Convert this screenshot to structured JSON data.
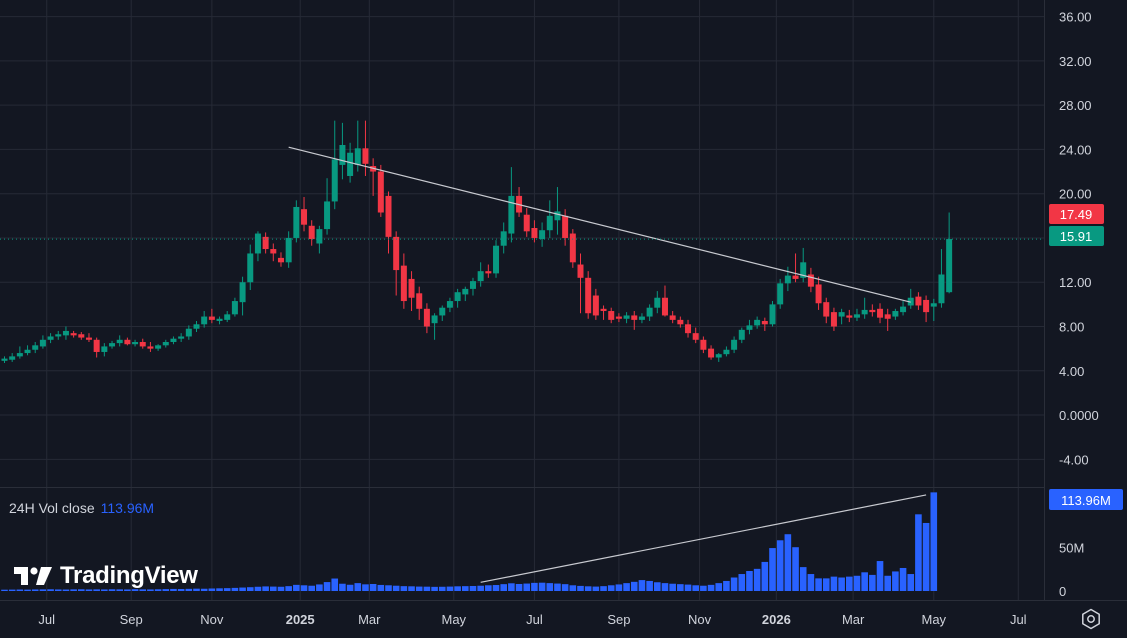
{
  "colors": {
    "up": "#089981",
    "down": "#f23645",
    "volume": "#2962ff",
    "grid": "#262a36",
    "text": "#d1d4dc",
    "bg": "#131722",
    "trend": "#c8cad0"
  },
  "price_axis": {
    "ticks": [
      "36.00",
      "32.00",
      "28.00",
      "24.00",
      "20.00",
      "16.00",
      "12.00",
      "8.00",
      "4.00",
      "0.0000",
      "-4.00"
    ]
  },
  "volume_axis": {
    "ticks": [
      "100M",
      "50M",
      "0"
    ]
  },
  "time_axis": {
    "ticks": [
      "Jul",
      "Sep",
      "Nov",
      "2025",
      "Mar",
      "May",
      "Jul",
      "Sep",
      "Nov",
      "2026",
      "Mar",
      "May",
      "Jul"
    ]
  },
  "price_labels": {
    "current": "17.49",
    "previous": "15.91"
  },
  "volume_legend": {
    "label": "24H Vol close",
    "value": "113.96M",
    "badge": "113.96M"
  },
  "branding": {
    "logo_text": "TradingView"
  },
  "icons": {
    "settings": "settings-icon",
    "logo": "tradingview-logo-icon"
  },
  "chart_data": {
    "type": "candlestick",
    "interval": "weekly",
    "price_range": [
      -6.5,
      37.5
    ],
    "volume_range": [
      0,
      119
    ],
    "grid": true,
    "candles": [
      {
        "o": 4.9,
        "h": 5.3,
        "l": 4.7,
        "c": 5.1
      },
      {
        "o": 5.0,
        "h": 5.6,
        "l": 4.8,
        "c": 5.3
      },
      {
        "o": 5.3,
        "h": 6.2,
        "l": 5.1,
        "c": 5.6
      },
      {
        "o": 5.6,
        "h": 6.3,
        "l": 5.4,
        "c": 5.9
      },
      {
        "o": 5.9,
        "h": 6.6,
        "l": 5.6,
        "c": 6.3
      },
      {
        "o": 6.2,
        "h": 7.2,
        "l": 6.0,
        "c": 6.8
      },
      {
        "o": 6.8,
        "h": 7.4,
        "l": 6.5,
        "c": 7.1
      },
      {
        "o": 7.1,
        "h": 7.6,
        "l": 6.8,
        "c": 7.3
      },
      {
        "o": 7.2,
        "h": 8.0,
        "l": 6.8,
        "c": 7.6
      },
      {
        "o": 7.4,
        "h": 7.6,
        "l": 7.0,
        "c": 7.2
      },
      {
        "o": 7.3,
        "h": 7.5,
        "l": 6.8,
        "c": 7.0
      },
      {
        "o": 7.0,
        "h": 7.4,
        "l": 6.6,
        "c": 6.8
      },
      {
        "o": 6.8,
        "h": 7.0,
        "l": 5.2,
        "c": 5.7
      },
      {
        "o": 5.7,
        "h": 6.5,
        "l": 5.3,
        "c": 6.2
      },
      {
        "o": 6.2,
        "h": 6.7,
        "l": 6.0,
        "c": 6.5
      },
      {
        "o": 6.5,
        "h": 7.2,
        "l": 6.2,
        "c": 6.8
      },
      {
        "o": 6.8,
        "h": 7.0,
        "l": 6.3,
        "c": 6.4
      },
      {
        "o": 6.4,
        "h": 6.8,
        "l": 6.2,
        "c": 6.6
      },
      {
        "o": 6.6,
        "h": 6.9,
        "l": 6.0,
        "c": 6.2
      },
      {
        "o": 6.2,
        "h": 6.6,
        "l": 5.7,
        "c": 6.0
      },
      {
        "o": 6.0,
        "h": 6.4,
        "l": 5.8,
        "c": 6.3
      },
      {
        "o": 6.3,
        "h": 6.8,
        "l": 6.1,
        "c": 6.6
      },
      {
        "o": 6.6,
        "h": 7.1,
        "l": 6.4,
        "c": 6.9
      },
      {
        "o": 6.9,
        "h": 7.4,
        "l": 6.6,
        "c": 7.1
      },
      {
        "o": 7.1,
        "h": 8.1,
        "l": 6.8,
        "c": 7.8
      },
      {
        "o": 7.8,
        "h": 8.5,
        "l": 7.5,
        "c": 8.2
      },
      {
        "o": 8.2,
        "h": 9.4,
        "l": 7.9,
        "c": 8.9
      },
      {
        "o": 8.9,
        "h": 9.6,
        "l": 8.3,
        "c": 8.6
      },
      {
        "o": 8.5,
        "h": 8.9,
        "l": 8.2,
        "c": 8.7
      },
      {
        "o": 8.6,
        "h": 9.4,
        "l": 8.4,
        "c": 9.1
      },
      {
        "o": 9.1,
        "h": 10.6,
        "l": 8.9,
        "c": 10.3
      },
      {
        "o": 10.2,
        "h": 12.5,
        "l": 9.0,
        "c": 12.0
      },
      {
        "o": 12.0,
        "h": 15.4,
        "l": 11.3,
        "c": 14.6
      },
      {
        "o": 14.6,
        "h": 16.6,
        "l": 13.9,
        "c": 16.4
      },
      {
        "o": 16.1,
        "h": 16.5,
        "l": 14.6,
        "c": 15.0
      },
      {
        "o": 15.0,
        "h": 15.5,
        "l": 13.9,
        "c": 14.6
      },
      {
        "o": 14.2,
        "h": 14.7,
        "l": 13.4,
        "c": 13.8
      },
      {
        "o": 13.8,
        "h": 16.6,
        "l": 13.3,
        "c": 16.0
      },
      {
        "o": 16.0,
        "h": 19.4,
        "l": 15.6,
        "c": 18.8
      },
      {
        "o": 18.6,
        "h": 19.7,
        "l": 16.6,
        "c": 17.2
      },
      {
        "o": 17.1,
        "h": 17.6,
        "l": 15.3,
        "c": 15.9
      },
      {
        "o": 15.5,
        "h": 17.1,
        "l": 14.6,
        "c": 16.8
      },
      {
        "o": 16.8,
        "h": 21.4,
        "l": 16.3,
        "c": 19.3
      },
      {
        "o": 19.3,
        "h": 26.6,
        "l": 18.6,
        "c": 23.1
      },
      {
        "o": 22.6,
        "h": 26.4,
        "l": 21.3,
        "c": 24.4
      },
      {
        "o": 21.6,
        "h": 24.6,
        "l": 21.0,
        "c": 23.7
      },
      {
        "o": 22.6,
        "h": 26.6,
        "l": 22.0,
        "c": 24.1
      },
      {
        "o": 24.1,
        "h": 26.6,
        "l": 21.6,
        "c": 22.7
      },
      {
        "o": 22.5,
        "h": 23.2,
        "l": 19.8,
        "c": 22.0
      },
      {
        "o": 22.0,
        "h": 22.6,
        "l": 17.9,
        "c": 18.3
      },
      {
        "o": 19.8,
        "h": 20.2,
        "l": 14.6,
        "c": 16.1
      },
      {
        "o": 16.1,
        "h": 16.6,
        "l": 10.8,
        "c": 13.1
      },
      {
        "o": 13.5,
        "h": 14.6,
        "l": 9.6,
        "c": 10.3
      },
      {
        "o": 12.3,
        "h": 13.0,
        "l": 9.4,
        "c": 10.6
      },
      {
        "o": 11.0,
        "h": 11.6,
        "l": 8.6,
        "c": 9.6
      },
      {
        "o": 9.6,
        "h": 10.1,
        "l": 7.4,
        "c": 8.0
      },
      {
        "o": 8.3,
        "h": 9.2,
        "l": 6.8,
        "c": 9.0
      },
      {
        "o": 9.0,
        "h": 9.9,
        "l": 8.5,
        "c": 9.7
      },
      {
        "o": 9.7,
        "h": 10.6,
        "l": 9.3,
        "c": 10.3
      },
      {
        "o": 10.3,
        "h": 11.4,
        "l": 9.7,
        "c": 11.1
      },
      {
        "o": 10.9,
        "h": 11.6,
        "l": 10.3,
        "c": 11.4
      },
      {
        "o": 11.4,
        "h": 12.4,
        "l": 10.8,
        "c": 12.1
      },
      {
        "o": 12.1,
        "h": 13.8,
        "l": 11.6,
        "c": 13.0
      },
      {
        "o": 13.0,
        "h": 13.6,
        "l": 12.4,
        "c": 12.8
      },
      {
        "o": 12.8,
        "h": 15.8,
        "l": 12.4,
        "c": 15.3
      },
      {
        "o": 15.3,
        "h": 17.4,
        "l": 14.6,
        "c": 16.6
      },
      {
        "o": 16.4,
        "h": 22.4,
        "l": 15.6,
        "c": 19.8
      },
      {
        "o": 19.8,
        "h": 20.6,
        "l": 17.9,
        "c": 18.3
      },
      {
        "o": 18.1,
        "h": 18.7,
        "l": 16.1,
        "c": 16.6
      },
      {
        "o": 16.9,
        "h": 17.6,
        "l": 15.6,
        "c": 16.0
      },
      {
        "o": 15.9,
        "h": 17.4,
        "l": 15.2,
        "c": 16.7
      },
      {
        "o": 16.7,
        "h": 19.4,
        "l": 16.0,
        "c": 18.0
      },
      {
        "o": 17.6,
        "h": 20.6,
        "l": 16.3,
        "c": 18.4
      },
      {
        "o": 18.0,
        "h": 18.6,
        "l": 15.3,
        "c": 16.0
      },
      {
        "o": 16.4,
        "h": 16.8,
        "l": 13.3,
        "c": 13.8
      },
      {
        "o": 13.6,
        "h": 14.6,
        "l": 9.2,
        "c": 12.4
      },
      {
        "o": 12.4,
        "h": 13.0,
        "l": 8.7,
        "c": 9.2
      },
      {
        "o": 10.8,
        "h": 11.4,
        "l": 8.6,
        "c": 9.0
      },
      {
        "o": 9.6,
        "h": 9.9,
        "l": 8.6,
        "c": 9.4
      },
      {
        "o": 9.4,
        "h": 9.7,
        "l": 8.3,
        "c": 8.6
      },
      {
        "o": 8.9,
        "h": 9.2,
        "l": 8.4,
        "c": 8.7
      },
      {
        "o": 8.7,
        "h": 9.3,
        "l": 8.3,
        "c": 9.0
      },
      {
        "o": 9.0,
        "h": 9.4,
        "l": 7.7,
        "c": 8.6
      },
      {
        "o": 8.6,
        "h": 9.2,
        "l": 8.3,
        "c": 8.9
      },
      {
        "o": 8.9,
        "h": 10.0,
        "l": 8.5,
        "c": 9.7
      },
      {
        "o": 9.7,
        "h": 11.2,
        "l": 9.2,
        "c": 10.6
      },
      {
        "o": 10.6,
        "h": 11.7,
        "l": 8.9,
        "c": 9.0
      },
      {
        "o": 9.0,
        "h": 9.4,
        "l": 8.3,
        "c": 8.6
      },
      {
        "o": 8.6,
        "h": 8.9,
        "l": 7.9,
        "c": 8.2
      },
      {
        "o": 8.2,
        "h": 8.6,
        "l": 7.0,
        "c": 7.4
      },
      {
        "o": 7.4,
        "h": 7.9,
        "l": 6.5,
        "c": 6.8
      },
      {
        "o": 6.8,
        "h": 7.1,
        "l": 5.6,
        "c": 5.9
      },
      {
        "o": 6.0,
        "h": 6.3,
        "l": 5.0,
        "c": 5.2
      },
      {
        "o": 5.2,
        "h": 5.6,
        "l": 4.8,
        "c": 5.5
      },
      {
        "o": 5.5,
        "h": 6.2,
        "l": 5.3,
        "c": 5.9
      },
      {
        "o": 5.9,
        "h": 7.1,
        "l": 5.6,
        "c": 6.8
      },
      {
        "o": 6.8,
        "h": 7.9,
        "l": 6.5,
        "c": 7.7
      },
      {
        "o": 7.7,
        "h": 8.6,
        "l": 7.3,
        "c": 8.1
      },
      {
        "o": 8.1,
        "h": 8.9,
        "l": 7.8,
        "c": 8.6
      },
      {
        "o": 8.5,
        "h": 8.8,
        "l": 7.6,
        "c": 8.2
      },
      {
        "o": 8.2,
        "h": 10.3,
        "l": 8.0,
        "c": 10.0
      },
      {
        "o": 10.0,
        "h": 12.3,
        "l": 9.6,
        "c": 11.9
      },
      {
        "o": 11.9,
        "h": 13.4,
        "l": 11.2,
        "c": 12.6
      },
      {
        "o": 12.6,
        "h": 14.6,
        "l": 12.0,
        "c": 12.3
      },
      {
        "o": 12.4,
        "h": 15.1,
        "l": 12.0,
        "c": 13.8
      },
      {
        "o": 12.7,
        "h": 13.3,
        "l": 11.1,
        "c": 11.6
      },
      {
        "o": 11.8,
        "h": 12.5,
        "l": 9.5,
        "c": 10.1
      },
      {
        "o": 10.2,
        "h": 10.6,
        "l": 8.3,
        "c": 8.9
      },
      {
        "o": 9.3,
        "h": 9.7,
        "l": 7.6,
        "c": 8.0
      },
      {
        "o": 8.9,
        "h": 9.6,
        "l": 8.2,
        "c": 9.3
      },
      {
        "o": 9.0,
        "h": 9.5,
        "l": 8.4,
        "c": 8.8
      },
      {
        "o": 8.8,
        "h": 9.6,
        "l": 8.5,
        "c": 9.1
      },
      {
        "o": 9.1,
        "h": 10.6,
        "l": 8.7,
        "c": 9.5
      },
      {
        "o": 9.5,
        "h": 10.0,
        "l": 8.9,
        "c": 9.3
      },
      {
        "o": 9.6,
        "h": 10.1,
        "l": 8.3,
        "c": 8.8
      },
      {
        "o": 9.1,
        "h": 9.6,
        "l": 7.6,
        "c": 8.7
      },
      {
        "o": 8.9,
        "h": 9.6,
        "l": 8.6,
        "c": 9.4
      },
      {
        "o": 9.3,
        "h": 10.3,
        "l": 9.0,
        "c": 9.8
      },
      {
        "o": 9.9,
        "h": 11.4,
        "l": 9.6,
        "c": 10.6
      },
      {
        "o": 10.7,
        "h": 11.1,
        "l": 9.5,
        "c": 9.9
      },
      {
        "o": 10.4,
        "h": 10.8,
        "l": 8.4,
        "c": 9.3
      },
      {
        "o": 9.8,
        "h": 10.5,
        "l": 8.5,
        "c": 10.1
      },
      {
        "o": 10.1,
        "h": 15.0,
        "l": 9.7,
        "c": 12.7
      },
      {
        "o": 11.1,
        "h": 18.3,
        "l": 11.0,
        "c": 15.9
      }
    ],
    "volumes": [
      1.5,
      1.6,
      1.7,
      1.6,
      1.8,
      1.9,
      2.0,
      1.8,
      1.7,
      1.9,
      2.0,
      1.8,
      1.9,
      1.8,
      2.0,
      1.9,
      1.8,
      2.1,
      1.9,
      1.8,
      2.0,
      2.2,
      2.4,
      2.3,
      2.5,
      2.7,
      2.6,
      2.9,
      3.1,
      3.3,
      3.6,
      4.0,
      4.4,
      4.9,
      5.3,
      5.1,
      4.9,
      5.6,
      7.1,
      6.6,
      6.1,
      7.6,
      10.3,
      14.4,
      8.4,
      7.2,
      9.1,
      7.7,
      8.1,
      7.0,
      6.6,
      6.1,
      5.6,
      5.4,
      5.1,
      5.0,
      4.8,
      4.9,
      5.1,
      5.4,
      5.6,
      5.8,
      6.1,
      6.6,
      6.9,
      7.9,
      8.9,
      8.1,
      8.6,
      9.4,
      9.6,
      9.1,
      8.6,
      7.9,
      6.6,
      5.9,
      5.4,
      5.1,
      5.6,
      6.6,
      7.6,
      9.1,
      10.6,
      12.6,
      11.6,
      10.1,
      9.1,
      8.4,
      7.9,
      7.4,
      6.6,
      6.1,
      7.1,
      9.1,
      11.6,
      15.6,
      19.6,
      23.1,
      25.6,
      33.6,
      49.6,
      58.6,
      65.6,
      50.6,
      27.6,
      19.6,
      14.6,
      14.6,
      16.6,
      15.6,
      16.6,
      17.6,
      21.6,
      18.6,
      34.6,
      17.6,
      22.6,
      26.6,
      19.6,
      88.6,
      78.6,
      113.96
    ],
    "trendlines": [
      {
        "pane": "price",
        "from": {
          "index": 37,
          "value": 24.2
        },
        "to": {
          "index": 118,
          "value": 10.2
        }
      },
      {
        "pane": "volume",
        "from": {
          "index": 62,
          "value": 10
        },
        "to": {
          "index": 120,
          "value": 111
        }
      }
    ]
  }
}
